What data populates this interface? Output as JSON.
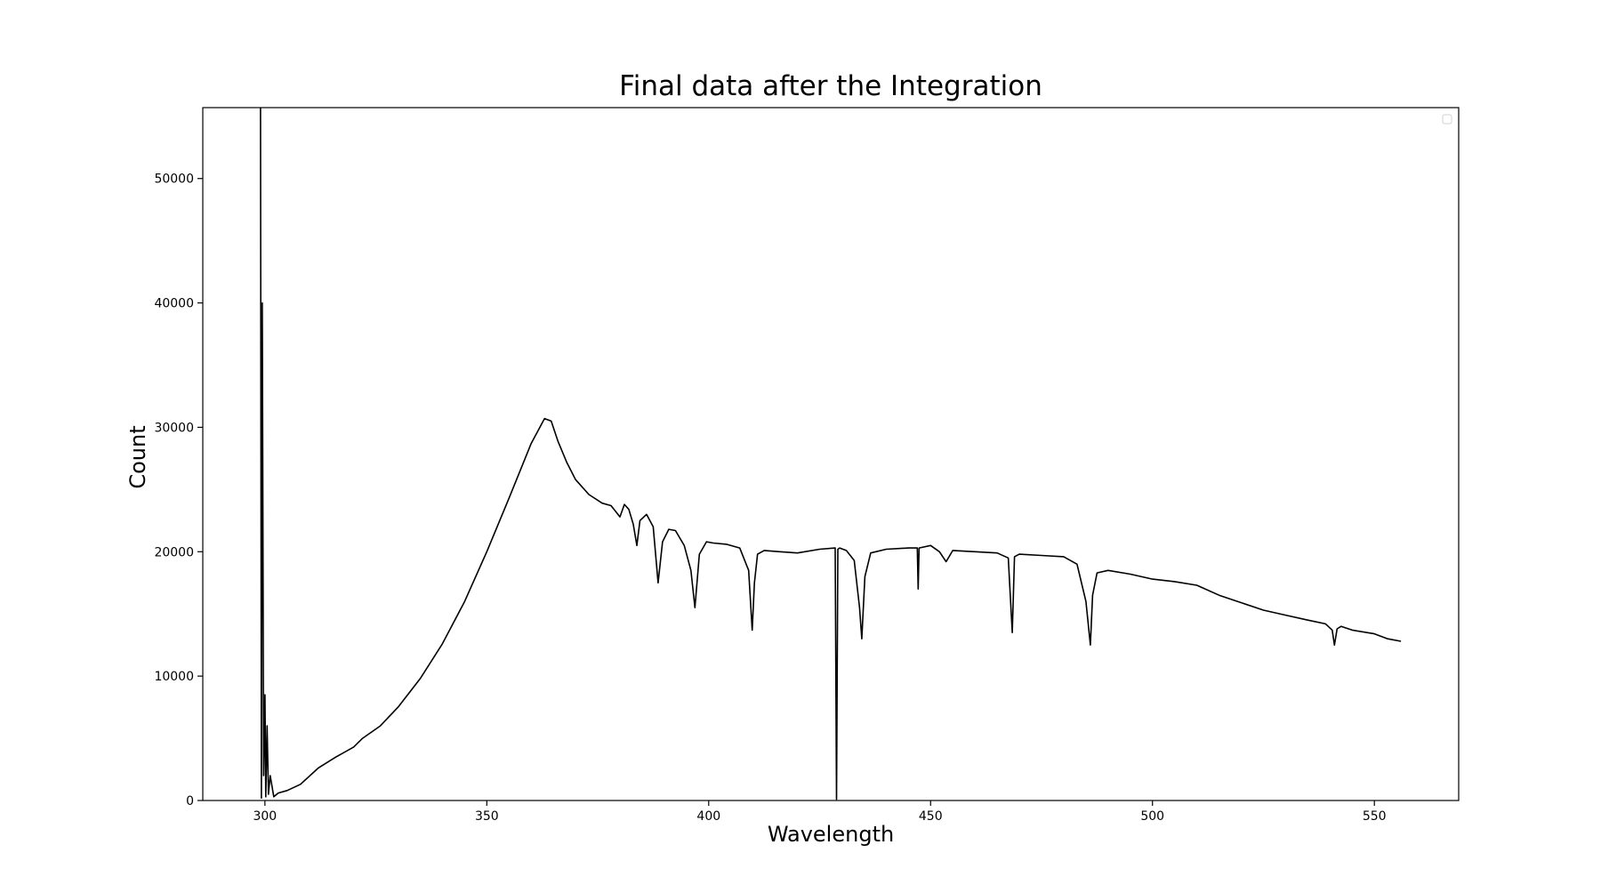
{
  "chart_data": {
    "type": "line",
    "title": "Final data after the Integration",
    "xlabel": "Wavelength",
    "ylabel": "Count",
    "xlim": [
      286,
      569
    ],
    "ylim": [
      0,
      55700
    ],
    "xticks": [
      300,
      350,
      400,
      450,
      500,
      550
    ],
    "yticks": [
      0,
      10000,
      20000,
      30000,
      40000,
      50000
    ],
    "grid": false,
    "legend": {
      "placement": "upper right",
      "entries": []
    },
    "line_color": "#000000",
    "series": [
      {
        "x": [
          299,
          299.2,
          299.4,
          299.7,
          300,
          300.2,
          300.5,
          300.8,
          301.2,
          302,
          303,
          305,
          308,
          312,
          316,
          320,
          322,
          326,
          330,
          335,
          340,
          345,
          350,
          355,
          360,
          363,
          364.5,
          366,
          368,
          370,
          373,
          376,
          378,
          380,
          381,
          382,
          383,
          383.8,
          384.5,
          386,
          387.5,
          388.6,
          389.6,
          391,
          392.5,
          394.5,
          396,
          396.9,
          397.9,
          399.5,
          401,
          404,
          407,
          409,
          409.8,
          410.3,
          411,
          412.5,
          416,
          420,
          425,
          428.5,
          428.8,
          429.1,
          429.5,
          431,
          432.8,
          434,
          434.5,
          435.2,
          436.5,
          440,
          445,
          447,
          447.2,
          447.4,
          450,
          452,
          453.5,
          455,
          460,
          465,
          467.5,
          468.4,
          468.9,
          470,
          475,
          480,
          483,
          485,
          486,
          486.5,
          487.5,
          490,
          495,
          500,
          505,
          510,
          515,
          520,
          525,
          530,
          535,
          539,
          540.5,
          541,
          541.6,
          542.5,
          545,
          550,
          553,
          556
        ],
        "y": [
          55700,
          200,
          40000,
          2000,
          8500,
          300,
          6000,
          500,
          2000,
          300,
          600,
          800,
          1300,
          2600,
          3500,
          4300,
          5000,
          6000,
          7500,
          9800,
          12600,
          16000,
          20000,
          24300,
          28700,
          30700,
          30500,
          28900,
          27200,
          25800,
          24600,
          23900,
          23700,
          22800,
          23800,
          23400,
          22200,
          20500,
          22500,
          23000,
          22000,
          17500,
          20800,
          21800,
          21700,
          20500,
          18500,
          15500,
          19800,
          20800,
          20700,
          20600,
          20300,
          18500,
          13700,
          17500,
          19800,
          20100,
          20000,
          19900,
          20200,
          20300,
          100,
          20200,
          20300,
          20100,
          19300,
          15500,
          13000,
          18000,
          19900,
          20200,
          20300,
          20300,
          17000,
          20300,
          20500,
          20000,
          19200,
          20100,
          20000,
          19900,
          19500,
          13500,
          19600,
          19800,
          19700,
          19600,
          19000,
          16000,
          12500,
          16500,
          18300,
          18500,
          18200,
          17800,
          17600,
          17300,
          16500,
          15900,
          15300,
          14900,
          14500,
          14200,
          13700,
          12500,
          13800,
          14000,
          13700,
          13400,
          13000,
          12800
        ]
      }
    ]
  }
}
